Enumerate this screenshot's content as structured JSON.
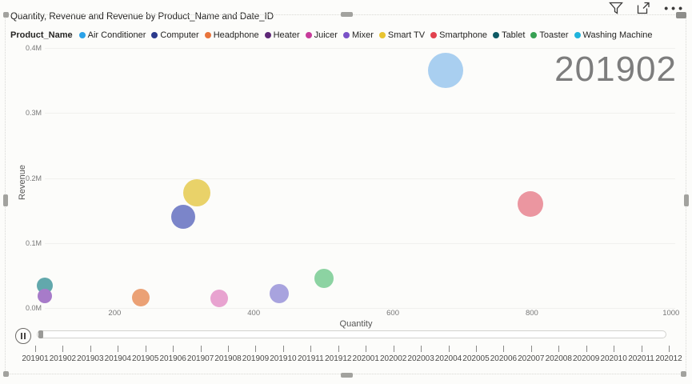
{
  "visual": {
    "title": "Quantity, Revenue and Revenue by Product_Name and Date_ID",
    "header_icons": {
      "filter": "filter-icon",
      "focus_mode": "focus-mode-icon",
      "more_options": "•••"
    }
  },
  "legend": {
    "title": "Product_Name",
    "items": [
      {
        "label": "Air Conditioner",
        "color": "#2ba2e8"
      },
      {
        "label": "Computer",
        "color": "#2b3a8c"
      },
      {
        "label": "Headphone",
        "color": "#e8743c"
      },
      {
        "label": "Heater",
        "color": "#5e2877"
      },
      {
        "label": "Juicer",
        "color": "#c73b9b"
      },
      {
        "label": "Mixer",
        "color": "#7a52c7"
      },
      {
        "label": "Smart TV",
        "color": "#e8c430"
      },
      {
        "label": "Smartphone",
        "color": "#e2414e"
      },
      {
        "label": "Tablet",
        "color": "#0e5a64"
      },
      {
        "label": "Toaster",
        "color": "#37a153"
      },
      {
        "label": "Washing Machine",
        "color": "#1fb4dc"
      }
    ]
  },
  "chart_data": {
    "type": "scatter",
    "title": "Quantity, Revenue and Revenue by Product_Name and Date_ID",
    "xlabel": "Quantity",
    "ylabel": "Revenue",
    "xlim": [
      88,
      1006
    ],
    "ylim": [
      0,
      0.4
    ],
    "x_ticks": [
      {
        "value": 200,
        "label": "200"
      },
      {
        "value": 400,
        "label": "400"
      },
      {
        "value": 600,
        "label": "600"
      },
      {
        "value": 800,
        "label": "800"
      },
      {
        "value": 1000,
        "label": "1000"
      }
    ],
    "y_ticks": [
      {
        "value": 0.0,
        "label": "0.0M"
      },
      {
        "value": 0.1,
        "label": "0.1M"
      },
      {
        "value": 0.2,
        "label": "0.2M"
      },
      {
        "value": 0.3,
        "label": "0.3M"
      },
      {
        "value": 0.4,
        "label": "0.4M"
      }
    ],
    "grid": "faint-horizontal",
    "legend_position": "top",
    "current_period": "201902",
    "series": [
      {
        "name": "Air Conditioner",
        "quantity": 676,
        "revenue_m": 0.366,
        "radius": 22,
        "fill": "#a9cff0"
      },
      {
        "name": "Smart TV",
        "quantity": 318,
        "revenue_m": 0.177,
        "radius": 17,
        "fill": "#e9d269"
      },
      {
        "name": "Computer",
        "quantity": 298,
        "revenue_m": 0.14,
        "radius": 15,
        "fill": "#7b85c9"
      },
      {
        "name": "Smartphone",
        "quantity": 798,
        "revenue_m": 0.16,
        "radius": 16,
        "fill": "#eb96a0"
      },
      {
        "name": "Toaster",
        "quantity": 501,
        "revenue_m": 0.045,
        "radius": 12,
        "fill": "#8cd3a2"
      },
      {
        "name": "Mixer",
        "quantity": 437,
        "revenue_m": 0.022,
        "radius": 12,
        "fill": "#a8a3de"
      },
      {
        "name": "Juicer",
        "quantity": 350,
        "revenue_m": 0.015,
        "radius": 11,
        "fill": "#e8a3d0"
      },
      {
        "name": "Headphone",
        "quantity": 237,
        "revenue_m": 0.016,
        "radius": 11,
        "fill": "#eba175"
      },
      {
        "name": "Tablet",
        "quantity": 100,
        "revenue_m": 0.034,
        "radius": 10,
        "fill": "#62a8ac"
      },
      {
        "name": "Heater",
        "quantity": 99,
        "revenue_m": 0.018,
        "radius": 9,
        "fill": "#a77bc9"
      }
    ]
  },
  "play_axis": {
    "button_state": "pause",
    "current_period": "201902",
    "periods": [
      "201901",
      "201902",
      "201903",
      "201904",
      "201905",
      "201906",
      "201907",
      "201908",
      "201909",
      "201910",
      "201911",
      "201912",
      "202001",
      "202002",
      "202003",
      "202004",
      "202005",
      "202006",
      "202007",
      "202008",
      "202009",
      "202010",
      "202011",
      "202012"
    ]
  }
}
